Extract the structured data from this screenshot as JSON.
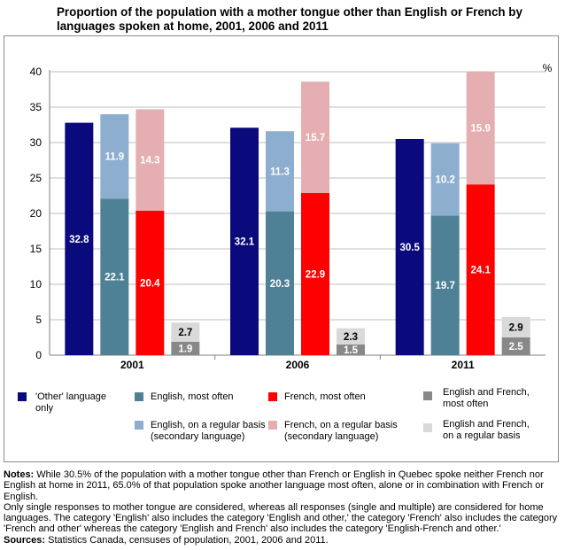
{
  "title": "Proportion of the population with a mother tongue other than English or French by languages spoken at home, 2001, 2006 and 2011",
  "colors": {
    "other": "#0a0a7c",
    "english_most": "#4f8196",
    "english_regular": "#8eaed0",
    "french_most": "#ff0000",
    "french_regular": "#e5aeb0",
    "ef_most": "#888888",
    "ef_regular": "#d9d9d9",
    "grid": "#bfbfbf",
    "axis": "#808080"
  },
  "chart_data": {
    "type": "bar",
    "stacked": true,
    "unit_label": "%",
    "ylim": [
      0,
      40
    ],
    "yticks": [
      0,
      5,
      10,
      15,
      20,
      25,
      30,
      35,
      40
    ],
    "grid": true,
    "legend_position": "bottom",
    "categories": [
      "2001",
      "2006",
      "2011"
    ],
    "groups": [
      {
        "year": "2001",
        "bars": [
          {
            "key": "other",
            "segments": [
              32.8
            ]
          },
          {
            "key": "english",
            "segments": [
              22.1,
              11.9
            ]
          },
          {
            "key": "french",
            "segments": [
              20.4,
              14.3
            ]
          },
          {
            "key": "ef",
            "segments": [
              1.9,
              2.7
            ]
          }
        ]
      },
      {
        "year": "2006",
        "bars": [
          {
            "key": "other",
            "segments": [
              32.1
            ]
          },
          {
            "key": "english",
            "segments": [
              20.3,
              11.3
            ]
          },
          {
            "key": "french",
            "segments": [
              22.9,
              15.7
            ]
          },
          {
            "key": "ef",
            "segments": [
              1.5,
              2.3
            ]
          }
        ]
      },
      {
        "year": "2011",
        "bars": [
          {
            "key": "other",
            "segments": [
              30.5
            ]
          },
          {
            "key": "english",
            "segments": [
              19.7,
              10.2
            ]
          },
          {
            "key": "french",
            "segments": [
              24.1,
              15.9
            ]
          },
          {
            "key": "ef",
            "segments": [
              2.5,
              2.9
            ]
          }
        ]
      }
    ],
    "series": [
      {
        "name": "'Other' language only",
        "color_key": "other"
      },
      {
        "name": "English, most often",
        "color_key": "english_most"
      },
      {
        "name": "English, on a regular basis (secondary language)",
        "color_key": "english_regular"
      },
      {
        "name": "French, most often",
        "color_key": "french_most"
      },
      {
        "name": "French, on a regular basis (secondary language)",
        "color_key": "french_regular"
      },
      {
        "name": "English and French, most often",
        "color_key": "ef_most"
      },
      {
        "name": "English and French, on a regular basis",
        "color_key": "ef_regular"
      }
    ]
  },
  "legend": [
    {
      "label": "'Other' language\nonly",
      "color_key": "other"
    },
    {
      "label": "English, most often",
      "color_key": "english_most"
    },
    {
      "label": "English, on a regular basis\n(secondary language)",
      "color_key": "english_regular"
    },
    {
      "label": "French, most often",
      "color_key": "french_most"
    },
    {
      "label": "French, on a regular basis\n(secondary language)",
      "color_key": "french_regular"
    },
    {
      "label": "English and French,\nmost often",
      "color_key": "ef_most"
    },
    {
      "label": "English and French,\non a regular basis",
      "color_key": "ef_regular"
    }
  ],
  "notes": {
    "notes_label": "Notes:",
    "notes_text": " While 30.5% of the population with a mother tongue other than French or English in Quebec spoke neither French nor English at home in 2011, 65.0% of that population spoke another language most often, alone or in combination with French or English.",
    "note_2": "Only single responses to mother tongue are considered, whereas all responses (single and multiple) are considered for home languages. The category 'English' also includes the category 'English and other,' the category 'French' also includes the category 'French and other' whereas the category 'English and French' also includes the category 'English-French and other.'",
    "sources_label": "Sources:",
    "sources_text": " Statistics Canada, censuses of population, 2001, 2006 and 2011."
  }
}
